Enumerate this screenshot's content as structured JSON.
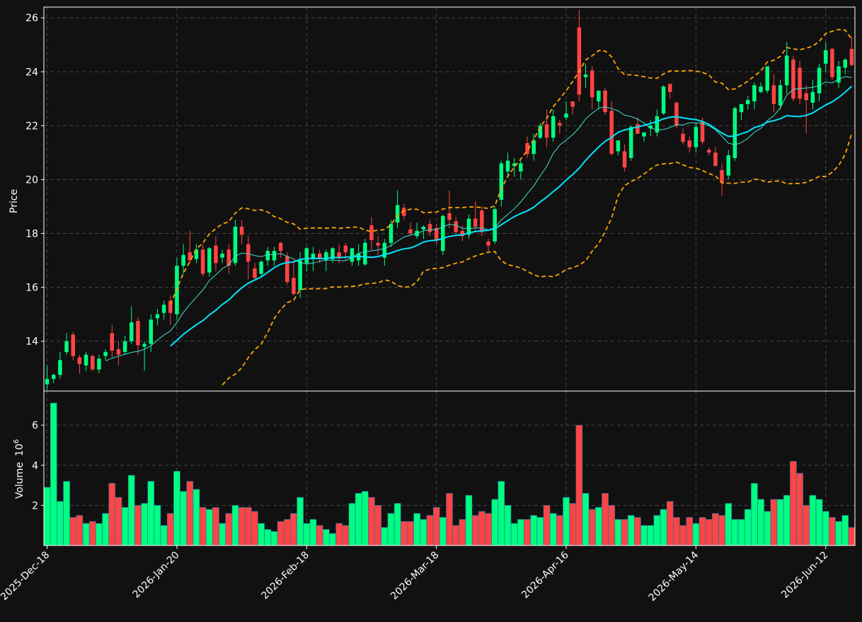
{
  "chart_data": {
    "type": "candlestick",
    "colors": {
      "background": "#111111",
      "up": "#00ff7f",
      "down": "#ff4444",
      "ma_fast": "#40e0d0",
      "ma_slow": "#00e5ff",
      "bollinger": "#ffa500",
      "grid": "#444444",
      "axis": "#ffffff"
    },
    "price_panel": {
      "ylabel": "Price",
      "yticks": [
        14,
        16,
        18,
        20,
        22,
        24,
        26
      ],
      "ylim": [
        12.15,
        26.4
      ],
      "grid": true
    },
    "volume_panel": {
      "ylabel": "Volume",
      "ylabel_exp": "6",
      "ylabel_base": "10",
      "yticks": [
        2,
        4,
        6
      ],
      "ylim": [
        0,
        7.7
      ],
      "grid": true
    },
    "x_ticks": [
      {
        "index": 0,
        "label": "2025-Dec-18"
      },
      {
        "index": 20,
        "label": "2026-Jan-20"
      },
      {
        "index": 40,
        "label": "2026-Feb-18"
      },
      {
        "index": 60,
        "label": "2026-Mar-18"
      },
      {
        "index": 80,
        "label": "2026-Apr-16"
      },
      {
        "index": 100,
        "label": "2026-May-14"
      },
      {
        "index": 120,
        "label": "2026-Jun-12"
      }
    ],
    "x_range": [
      -0.5,
      124.5
    ],
    "ohlcv": [
      [
        12.4,
        13.1,
        12.2,
        12.6,
        2.9
      ],
      [
        12.6,
        12.8,
        12.45,
        12.75,
        7.1
      ],
      [
        12.75,
        13.6,
        12.6,
        13.3,
        2.2
      ],
      [
        13.6,
        14.3,
        13.5,
        14.0,
        3.2
      ],
      [
        14.25,
        14.35,
        13.3,
        13.45,
        1.4
      ],
      [
        13.4,
        13.5,
        12.8,
        13.15,
        1.5
      ],
      [
        13.1,
        13.6,
        12.9,
        13.5,
        1.1
      ],
      [
        13.45,
        13.5,
        12.9,
        12.95,
        1.2
      ],
      [
        12.95,
        13.5,
        12.8,
        13.35,
        1.1
      ],
      [
        13.45,
        13.7,
        13.3,
        13.6,
        1.6
      ],
      [
        14.3,
        14.6,
        13.4,
        13.65,
        3.1
      ],
      [
        13.7,
        14.0,
        13.1,
        13.5,
        2.4
      ],
      [
        13.6,
        14.2,
        13.5,
        14.0,
        1.9
      ],
      [
        14.0,
        15.3,
        13.9,
        14.7,
        3.5
      ],
      [
        14.75,
        14.9,
        13.5,
        13.85,
        2.0
      ],
      [
        13.8,
        14.0,
        12.9,
        13.9,
        2.1
      ],
      [
        13.9,
        15.0,
        13.6,
        14.8,
        3.2
      ],
      [
        14.85,
        15.2,
        14.6,
        15.0,
        2.0
      ],
      [
        15.05,
        15.5,
        14.8,
        15.35,
        1.0
      ],
      [
        15.5,
        15.7,
        14.6,
        15.05,
        1.6
      ],
      [
        15.0,
        17.1,
        14.8,
        16.8,
        3.7
      ],
      [
        16.8,
        17.6,
        16.5,
        17.2,
        2.7
      ],
      [
        17.3,
        18.1,
        16.9,
        17.0,
        3.2
      ],
      [
        17.05,
        17.6,
        16.9,
        17.4,
        2.8
      ],
      [
        17.4,
        17.6,
        16.4,
        16.5,
        1.9
      ],
      [
        16.55,
        17.5,
        16.4,
        17.45,
        1.8
      ],
      [
        17.55,
        17.9,
        16.6,
        16.9,
        1.9
      ],
      [
        17.1,
        17.4,
        16.9,
        17.25,
        1.1
      ],
      [
        17.4,
        17.6,
        16.5,
        16.8,
        1.6
      ],
      [
        16.9,
        18.5,
        16.8,
        18.25,
        2.0
      ],
      [
        18.25,
        18.5,
        17.6,
        17.95,
        1.9
      ],
      [
        17.6,
        17.9,
        16.3,
        16.95,
        1.9
      ],
      [
        16.7,
        16.9,
        16.3,
        16.35,
        1.7
      ],
      [
        16.5,
        17.0,
        16.4,
        16.95,
        1.1
      ],
      [
        17.0,
        17.5,
        16.8,
        17.35,
        0.8
      ],
      [
        17.0,
        17.5,
        16.8,
        17.35,
        0.7
      ],
      [
        17.65,
        17.7,
        17.1,
        17.35,
        1.2
      ],
      [
        17.15,
        17.3,
        16.1,
        16.2,
        1.3
      ],
      [
        16.35,
        17.0,
        15.7,
        15.75,
        1.6
      ],
      [
        15.9,
        17.3,
        15.6,
        17.0,
        2.4
      ],
      [
        16.9,
        17.5,
        16.6,
        17.45,
        1.1
      ],
      [
        17.05,
        17.5,
        16.6,
        17.25,
        1.3
      ],
      [
        17.25,
        17.4,
        16.9,
        17.05,
        1.0
      ],
      [
        17.0,
        17.4,
        16.6,
        17.3,
        0.8
      ],
      [
        17.05,
        17.5,
        16.9,
        17.45,
        0.6
      ],
      [
        17.3,
        17.6,
        16.9,
        17.1,
        1.1
      ],
      [
        17.55,
        17.65,
        17.0,
        17.3,
        1.0
      ],
      [
        16.95,
        17.4,
        16.8,
        17.45,
        2.1
      ],
      [
        17.0,
        17.6,
        16.8,
        17.25,
        2.6
      ],
      [
        16.85,
        17.8,
        16.8,
        17.65,
        2.7
      ],
      [
        18.3,
        18.6,
        17.4,
        17.75,
        2.4
      ],
      [
        17.65,
        17.9,
        17.2,
        17.55,
        2.0
      ],
      [
        17.1,
        17.8,
        16.8,
        17.65,
        0.9
      ],
      [
        17.65,
        18.5,
        17.5,
        18.35,
        1.6
      ],
      [
        18.4,
        19.6,
        18.2,
        19.05,
        2.1
      ],
      [
        18.95,
        19.1,
        18.5,
        18.65,
        1.2
      ],
      [
        18.15,
        18.4,
        17.9,
        18.0,
        1.2
      ],
      [
        17.9,
        18.4,
        17.8,
        18.1,
        1.6
      ],
      [
        18.15,
        18.3,
        17.8,
        18.25,
        1.3
      ],
      [
        18.35,
        18.5,
        17.9,
        18.05,
        1.5
      ],
      [
        18.2,
        18.35,
        17.6,
        17.75,
        1.9
      ],
      [
        17.35,
        18.7,
        17.2,
        18.65,
        1.4
      ],
      [
        18.75,
        19.6,
        18.2,
        18.5,
        2.6
      ],
      [
        18.45,
        18.6,
        17.9,
        18.05,
        1.0
      ],
      [
        18.1,
        18.3,
        17.7,
        17.9,
        1.3
      ],
      [
        17.95,
        18.7,
        17.8,
        18.55,
        2.5
      ],
      [
        18.55,
        19.2,
        18.1,
        18.25,
        1.5
      ],
      [
        18.85,
        19.0,
        17.9,
        18.05,
        1.7
      ],
      [
        17.7,
        17.8,
        17.3,
        17.55,
        1.6
      ],
      [
        17.7,
        19.0,
        17.6,
        18.9,
        2.3
      ],
      [
        19.25,
        20.7,
        19.0,
        20.6,
        3.2
      ],
      [
        20.3,
        21.0,
        20.1,
        20.7,
        2.0
      ],
      [
        20.5,
        20.8,
        20.1,
        20.6,
        1.1
      ],
      [
        20.3,
        20.7,
        20.0,
        20.6,
        1.3
      ],
      [
        21.35,
        21.6,
        20.8,
        20.95,
        1.3
      ],
      [
        20.95,
        21.7,
        20.7,
        21.45,
        1.5
      ],
      [
        21.55,
        22.1,
        21.5,
        22.0,
        1.4
      ],
      [
        22.05,
        22.6,
        21.2,
        21.55,
        2.0
      ],
      [
        21.55,
        22.6,
        21.4,
        22.35,
        1.6
      ],
      [
        22.1,
        22.2,
        21.7,
        22.0,
        1.5
      ],
      [
        22.3,
        22.9,
        22.2,
        22.45,
        2.4
      ],
      [
        22.9,
        22.9,
        22.4,
        22.7,
        2.1
      ],
      [
        25.65,
        26.3,
        22.9,
        23.15,
        6.0
      ],
      [
        23.8,
        24.3,
        23.4,
        23.9,
        2.6
      ],
      [
        24.05,
        24.2,
        22.6,
        23.05,
        1.8
      ],
      [
        22.9,
        23.3,
        22.6,
        23.3,
        1.9
      ],
      [
        23.3,
        23.4,
        22.4,
        22.5,
        2.6
      ],
      [
        22.55,
        22.9,
        20.9,
        20.95,
        2.0
      ],
      [
        21.05,
        21.4,
        20.9,
        21.45,
        1.3
      ],
      [
        21.05,
        21.3,
        20.3,
        20.45,
        1.3
      ],
      [
        20.8,
        22.0,
        20.7,
        21.95,
        1.5
      ],
      [
        22.05,
        22.3,
        21.8,
        21.7,
        1.4
      ],
      [
        21.6,
        21.7,
        21.4,
        21.75,
        1.0
      ],
      [
        21.9,
        22.2,
        21.6,
        22.0,
        1.0
      ],
      [
        21.75,
        22.6,
        21.6,
        22.35,
        1.5
      ],
      [
        22.45,
        23.5,
        22.4,
        23.45,
        1.8
      ],
      [
        23.55,
        23.5,
        23.0,
        23.25,
        2.2
      ],
      [
        22.85,
        22.9,
        21.9,
        22.0,
        1.4
      ],
      [
        21.7,
        21.9,
        21.3,
        21.4,
        1.0
      ],
      [
        21.45,
        21.6,
        21.0,
        21.2,
        1.4
      ],
      [
        21.2,
        22.1,
        21.0,
        21.95,
        1.1
      ],
      [
        22.15,
        22.3,
        21.3,
        21.4,
        1.4
      ],
      [
        21.1,
        21.2,
        20.9,
        21.0,
        1.3
      ],
      [
        21.0,
        21.2,
        20.5,
        20.5,
        1.6
      ],
      [
        20.35,
        20.6,
        19.4,
        19.9,
        1.5
      ],
      [
        20.15,
        21.1,
        20.0,
        20.9,
        2.1
      ],
      [
        20.8,
        22.7,
        20.7,
        22.65,
        1.3
      ],
      [
        22.5,
        22.7,
        22.2,
        22.8,
        1.3
      ],
      [
        22.8,
        23.1,
        22.6,
        22.95,
        1.8
      ],
      [
        22.9,
        23.6,
        22.6,
        23.5,
        3.1
      ],
      [
        23.25,
        23.6,
        23.2,
        23.45,
        2.3
      ],
      [
        23.3,
        24.0,
        23.2,
        24.2,
        1.7
      ],
      [
        23.5,
        23.9,
        22.5,
        22.8,
        2.3
      ],
      [
        22.75,
        23.7,
        22.6,
        23.5,
        2.3
      ],
      [
        23.5,
        25.1,
        23.2,
        24.6,
        2.5
      ],
      [
        24.45,
        24.6,
        22.9,
        23.0,
        4.2
      ],
      [
        24.15,
        24.4,
        22.8,
        23.0,
        3.6
      ],
      [
        23.2,
        23.5,
        21.7,
        22.95,
        2.0
      ],
      [
        22.85,
        23.7,
        22.6,
        23.25,
        2.5
      ],
      [
        23.2,
        24.3,
        22.9,
        24.15,
        2.3
      ],
      [
        24.3,
        25.1,
        24.0,
        24.8,
        1.7
      ],
      [
        24.85,
        24.9,
        23.7,
        23.8,
        1.4
      ],
      [
        23.6,
        24.4,
        23.4,
        24.2,
        1.2
      ],
      [
        24.15,
        24.5,
        23.9,
        24.45,
        1.5
      ],
      [
        24.85,
        25.3,
        24.2,
        24.25,
        0.9
      ]
    ]
  }
}
